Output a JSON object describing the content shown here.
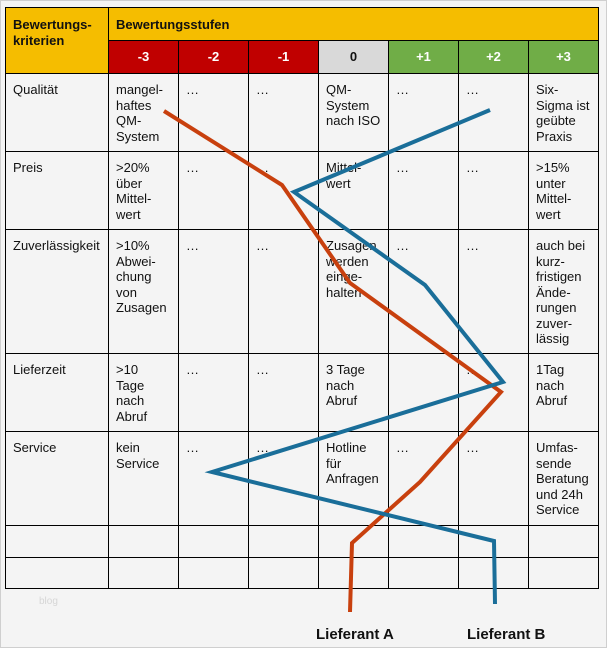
{
  "header": {
    "criteria_label": "Bewertungs-\nkriterien",
    "levels_label": "Bewertungsstufen"
  },
  "levels": [
    "-3",
    "-2",
    "-1",
    "0",
    "+1",
    "+2",
    "+3"
  ],
  "colors": {
    "header": "#f5bd00",
    "negative": "#c00000",
    "neutral": "#d9d9d9",
    "positive": "#70ad47",
    "supplier_a": "#c8400e",
    "supplier_b": "#1a6e99"
  },
  "rows": [
    {
      "criterion": "Qualität",
      "cells": [
        "mangel-\nhaftes\nQM-\nSystem",
        "…",
        "…",
        "QM-\nSystem\nnach ISO",
        "…",
        "…",
        "Six-\nSigma ist\ngeübte\nPraxis"
      ]
    },
    {
      "criterion": "Preis",
      "cells": [
        ">20%\nüber\nMittel-\nwert",
        "…",
        "…",
        "Mittel-\nwert",
        "…",
        "…",
        ">15%\nunter\nMittel-\nwert"
      ]
    },
    {
      "criterion": "Zuverlässigkeit",
      "cells": [
        ">10%\nAbwei-\nchung\nvon\nZusagen",
        "…",
        "…",
        "Zusagen\nwerden\neinge-\nhalten",
        "…",
        "…",
        "auch bei\nkurz-\nfristigen\nÄnde-\nrungen\nzuver-\nlässig"
      ]
    },
    {
      "criterion": "Lieferzeit",
      "cells": [
        ">10\nTage\nnach\nAbruf",
        "…",
        "…",
        "3 Tage\nnach\nAbruf",
        "",
        "…",
        "1Tag\nnach\nAbruf"
      ]
    },
    {
      "criterion": "Service",
      "cells": [
        "kein\nService",
        "…",
        "…",
        "Hotline\nfür\nAnfragen",
        "…",
        "…",
        "Umfas-\nsende\nBeratung\nund 24h\nService"
      ]
    },
    {
      "criterion": "",
      "cells": [
        "",
        "",
        "",
        "",
        "",
        "",
        ""
      ]
    },
    {
      "criterion": "",
      "cells": [
        "",
        "",
        "",
        "",
        "",
        "",
        ""
      ]
    }
  ],
  "watermark": "blog",
  "suppliers": [
    {
      "name": "Lieferant A"
    },
    {
      "name": "Lieferant B"
    }
  ]
}
